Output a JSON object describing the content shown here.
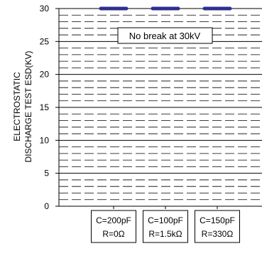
{
  "chart_data": {
    "type": "bar",
    "title": "",
    "xlabel": "",
    "ylabel": "ELECTROSTATIC DISCHARGE TEST ESD(KV)",
    "ylabel_lines": [
      "ELECTROSTATIC",
      "DISCHARGE TEST ESD(KV)"
    ],
    "ylim": [
      0,
      30
    ],
    "yticks": [
      "0",
      "5",
      "10",
      "15",
      "20",
      "25",
      "30"
    ],
    "grid": true,
    "minor_grid_dashed": true,
    "legend": "none",
    "categories": [
      {
        "line1": "C=200pF",
        "line2": "R=0Ω"
      },
      {
        "line1": "C=100pF",
        "line2": "R=1.5kΩ"
      },
      {
        "line1": "C=150pF",
        "line2": "R=330Ω"
      }
    ],
    "values": [
      30,
      30,
      30
    ],
    "marker_color": "#2f2f8f",
    "annotation": "No break at 30kV"
  }
}
